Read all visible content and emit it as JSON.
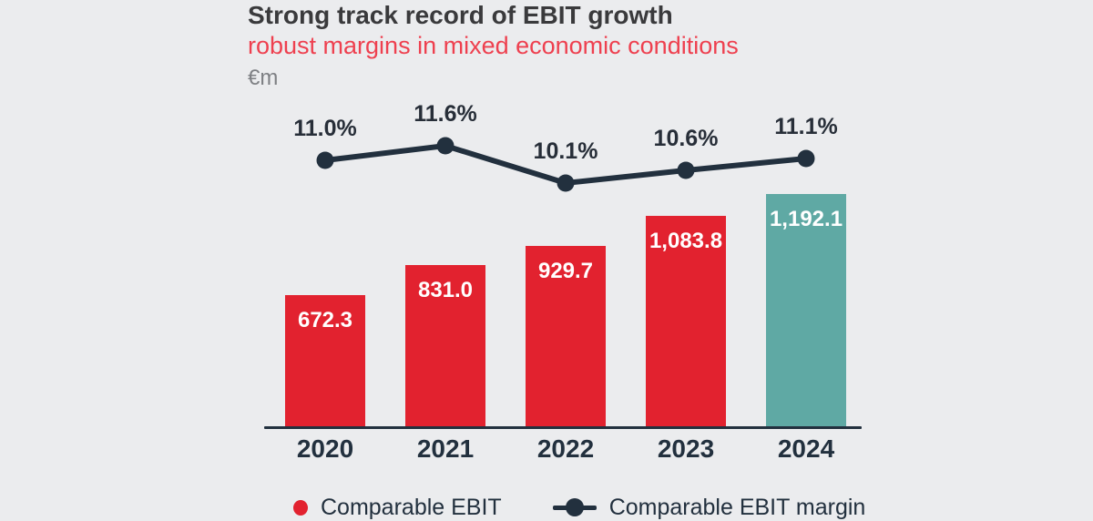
{
  "header": {
    "title": "Strong track record of EBIT growth",
    "subtitle": "robust margins in mixed economic conditions",
    "unit": "€m"
  },
  "chart_data": {
    "type": "bar",
    "subtype": "bar-line-combo",
    "categories": [
      "2020",
      "2021",
      "2022",
      "2023",
      "2024"
    ],
    "series": [
      {
        "name": "Comparable EBIT",
        "type": "bar",
        "values": [
          672.3,
          831.0,
          929.7,
          1083.8,
          1192.1
        ],
        "value_labels": [
          "672.3",
          "831.0",
          "929.7",
          "1,083.8",
          "1,192.1"
        ],
        "bar_colors": [
          "#e2222f",
          "#e2222f",
          "#e2222f",
          "#e2222f",
          "#5fa9a4"
        ]
      },
      {
        "name": "Comparable EBIT margin",
        "type": "line",
        "values": [
          11.0,
          11.6,
          10.1,
          10.6,
          11.1
        ],
        "value_labels": [
          "11.0%",
          "11.6%",
          "10.1%",
          "10.6%",
          "11.1%"
        ],
        "color": "#22303e"
      }
    ],
    "title": "Strong track record of EBIT growth",
    "subtitle": "robust margins in mixed economic conditions",
    "ylabel": "€m",
    "xlabel": "",
    "grid": false,
    "legend_position": "bottom",
    "legend": [
      "Comparable EBIT",
      "Comparable EBIT margin"
    ]
  },
  "colors": {
    "background": "#ebecee",
    "bar_red": "#e2222f",
    "bar_teal_highlight": "#5fa9a4",
    "line_navy": "#22303e",
    "title_text": "#3a3a3c",
    "subtitle_red": "#ee404f",
    "unit_gray": "#7e8084",
    "bar_value_text": "#ffffff"
  }
}
